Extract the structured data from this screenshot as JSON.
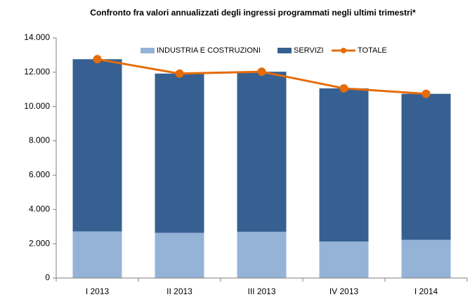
{
  "chart_data": {
    "type": "bar",
    "stacked": true,
    "title": "Confronto fra valori annualizzati degli ingressi programmati negli ultimi trimestri*",
    "categories": [
      "I 2013",
      "II 2013",
      "III 2013",
      "IV 2013",
      "I 2014"
    ],
    "series": [
      {
        "name": "INDUSTRIA E COSTRUZIONI",
        "type": "bar",
        "color": "#95b3d7",
        "values": [
          2720,
          2640,
          2700,
          2130,
          2230
        ]
      },
      {
        "name": "SERVIZI",
        "type": "bar",
        "color": "#376092",
        "values": [
          10040,
          9280,
          9330,
          8930,
          8510
        ]
      },
      {
        "name": "TOTALE",
        "type": "line",
        "color": "#e46c0a",
        "values": [
          12760,
          11920,
          12030,
          11060,
          10740
        ]
      }
    ],
    "ylim": [
      0,
      14000
    ],
    "yticks": [
      0,
      {
        "value": 2000,
        "label": "2.000"
      },
      {
        "value": 4000,
        "label": "4.000"
      },
      {
        "value": 6000,
        "label": "6.000"
      },
      {
        "value": 8000,
        "label": "8.000"
      },
      {
        "value": 10000,
        "label": "10.000"
      },
      {
        "value": 12000,
        "label": "12.000"
      },
      {
        "value": 14000,
        "label": "14.000"
      }
    ],
    "grid": false,
    "legend": "top"
  }
}
